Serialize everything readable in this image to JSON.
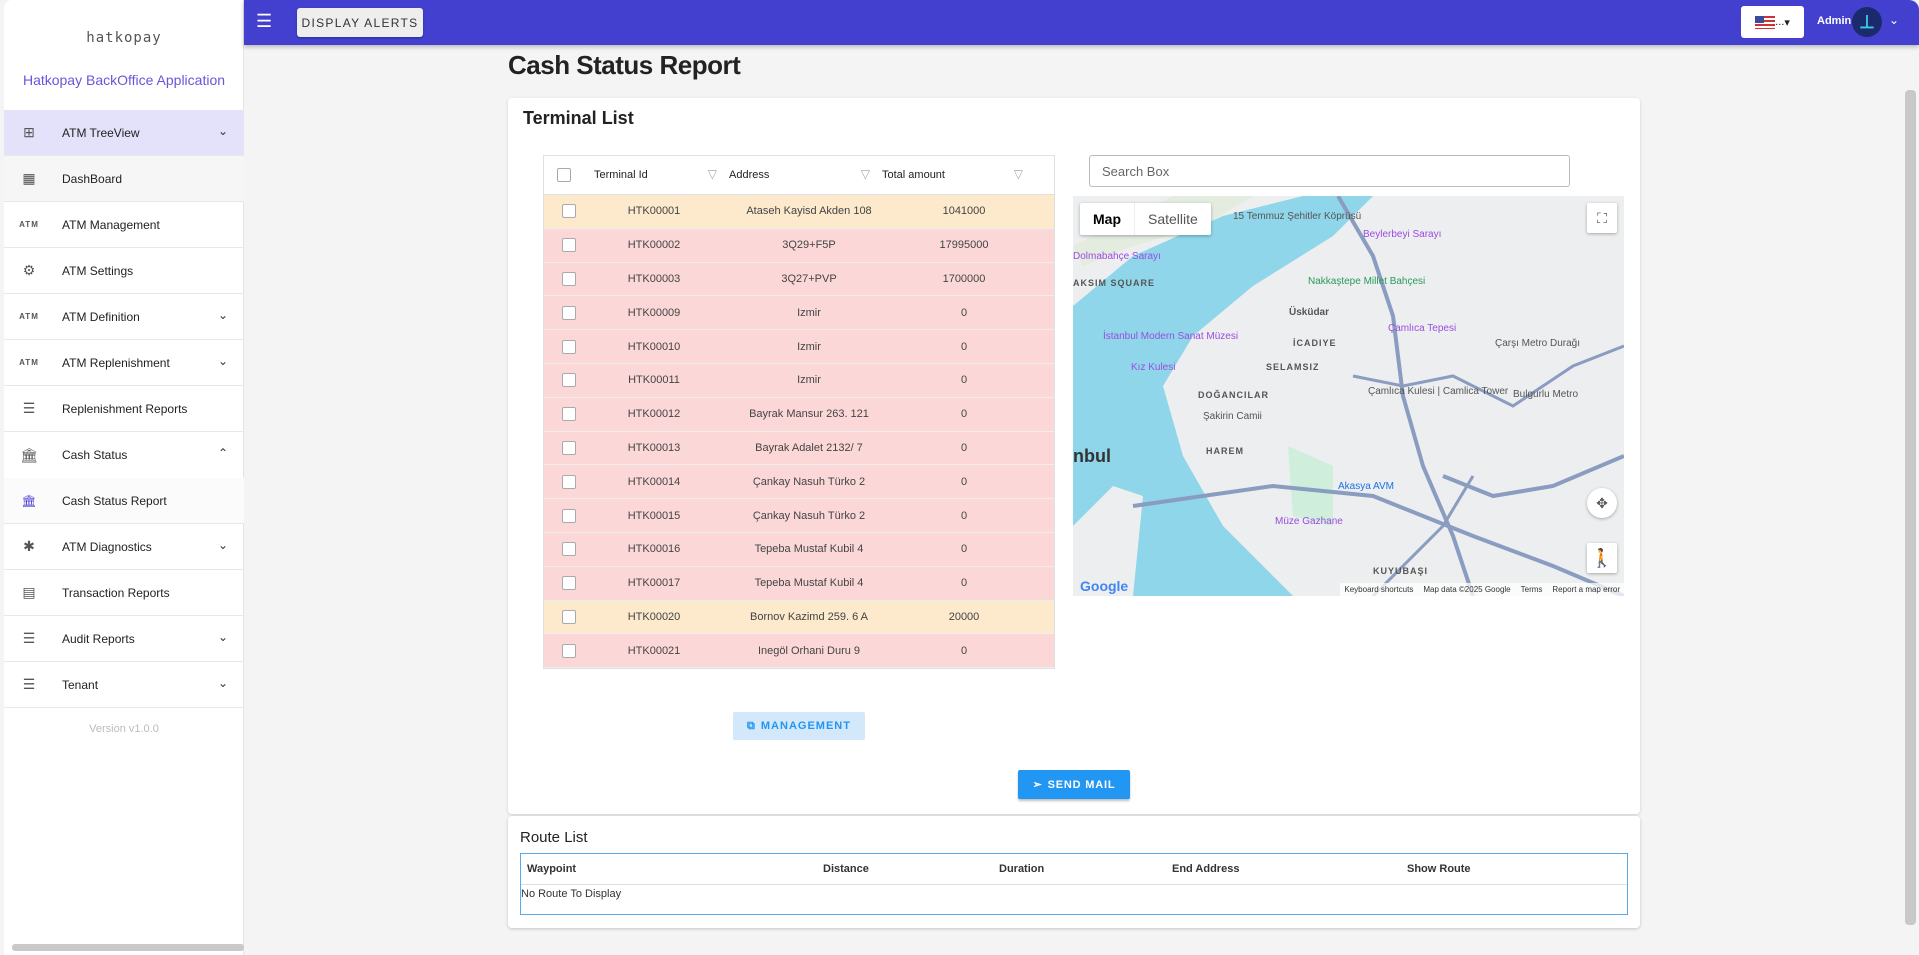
{
  "sidebar": {
    "logo": "hatkopay",
    "app_name": "Hatkopay BackOffice Application",
    "version": "Version v1.0.0",
    "items": [
      {
        "label": "ATM TreeView"
      },
      {
        "label": "DashBoard"
      },
      {
        "label": "ATM Management"
      },
      {
        "label": "ATM Settings"
      },
      {
        "label": "ATM Definition"
      },
      {
        "label": "ATM Replenishment"
      },
      {
        "label": "Replenishment Reports"
      },
      {
        "label": "Cash Status"
      },
      {
        "label": "Cash Status Report"
      },
      {
        "label": "ATM Diagnostics"
      },
      {
        "label": "Transaction Reports"
      },
      {
        "label": "Audit Reports"
      },
      {
        "label": "Tenant"
      }
    ],
    "atm_icon_text": "ATM"
  },
  "topbar": {
    "display_alerts": "DISPLAY ALERTS",
    "lang": "...",
    "user": "Admin"
  },
  "page": {
    "title": "Cash Status Report",
    "card_title": "Terminal List"
  },
  "table": {
    "headers": [
      "Terminal Id",
      "Address",
      "Total amount"
    ],
    "rows": [
      {
        "id": "HTK00001",
        "address": "Ataseh Kayisd Akden 108",
        "amount": "1041000",
        "status": "orange"
      },
      {
        "id": "HTK00002",
        "address": "3Q29+F5P",
        "amount": "17995000",
        "status": "red"
      },
      {
        "id": "HTK00003",
        "address": "3Q27+PVP",
        "amount": "1700000",
        "status": "red"
      },
      {
        "id": "HTK00009",
        "address": "Izmir",
        "amount": "0",
        "status": "red"
      },
      {
        "id": "HTK00010",
        "address": "Izmir",
        "amount": "0",
        "status": "red"
      },
      {
        "id": "HTK00011",
        "address": "Izmir",
        "amount": "0",
        "status": "red"
      },
      {
        "id": "HTK00012",
        "address": "Bayrak Mansur 263. 121",
        "amount": "0",
        "status": "red"
      },
      {
        "id": "HTK00013",
        "address": "Bayrak Adalet 2132/ 7",
        "amount": "0",
        "status": "red"
      },
      {
        "id": "HTK00014",
        "address": "Çankay Nasuh Türko 2",
        "amount": "0",
        "status": "red"
      },
      {
        "id": "HTK00015",
        "address": "Çankay Nasuh Türko 2",
        "amount": "0",
        "status": "red"
      },
      {
        "id": "HTK00016",
        "address": "Tepeba Mustaf Kubil 4",
        "amount": "0",
        "status": "red"
      },
      {
        "id": "HTK00017",
        "address": "Tepeba Mustaf Kubil 4",
        "amount": "0",
        "status": "red"
      },
      {
        "id": "HTK00020",
        "address": "Bornov Kazimd 259. 6 A",
        "amount": "20000",
        "status": "orange"
      },
      {
        "id": "HTK00021",
        "address": "Inegöl Orhani Duru 9",
        "amount": "0",
        "status": "red"
      }
    ]
  },
  "map": {
    "search_placeholder": "Search Box",
    "type_map": "Map",
    "type_satellite": "Satellite",
    "labels": [
      "15 Temmuz Şehitler Köprüsü",
      "Beylerbeyi Sarayı",
      "Dolmabahçe Sarayı",
      "AKSIM SQUARE",
      "Nakkaştepe Millet Bahçesi",
      "Üsküdar",
      "İstanbul Modern Sanat Müzesi",
      "Çamlıca Tepesi",
      "İCADIYE",
      "Çarşı Metro Durağı",
      "Kız Kulesi",
      "SELAMSIZ",
      "DOĞANCILAR",
      "Çamlıca Kulesi | Camlica Tower",
      "Bulgurlu Metro",
      "Şakirin Camii",
      "nbul",
      "HAREM",
      "Akasya AVM",
      "Müze Gazhane",
      "KUYUBAŞI"
    ],
    "footer": [
      "Keyboard shortcuts",
      "Map data ©2025 Google",
      "Terms",
      "Report a map error"
    ],
    "google": "Google"
  },
  "buttons": {
    "management": "MANAGEMENT",
    "send_mail": "SEND MAIL"
  },
  "routes": {
    "title": "Route List",
    "headers": [
      "Waypoint",
      "Distance",
      "Duration",
      "End Address",
      "Show Route"
    ],
    "empty": "No Route To Display"
  },
  "colors": {
    "topbar": "#4340cf",
    "row_red": "#fbd8d7",
    "row_orange": "#fde9cb",
    "primary": "#2196f3"
  }
}
